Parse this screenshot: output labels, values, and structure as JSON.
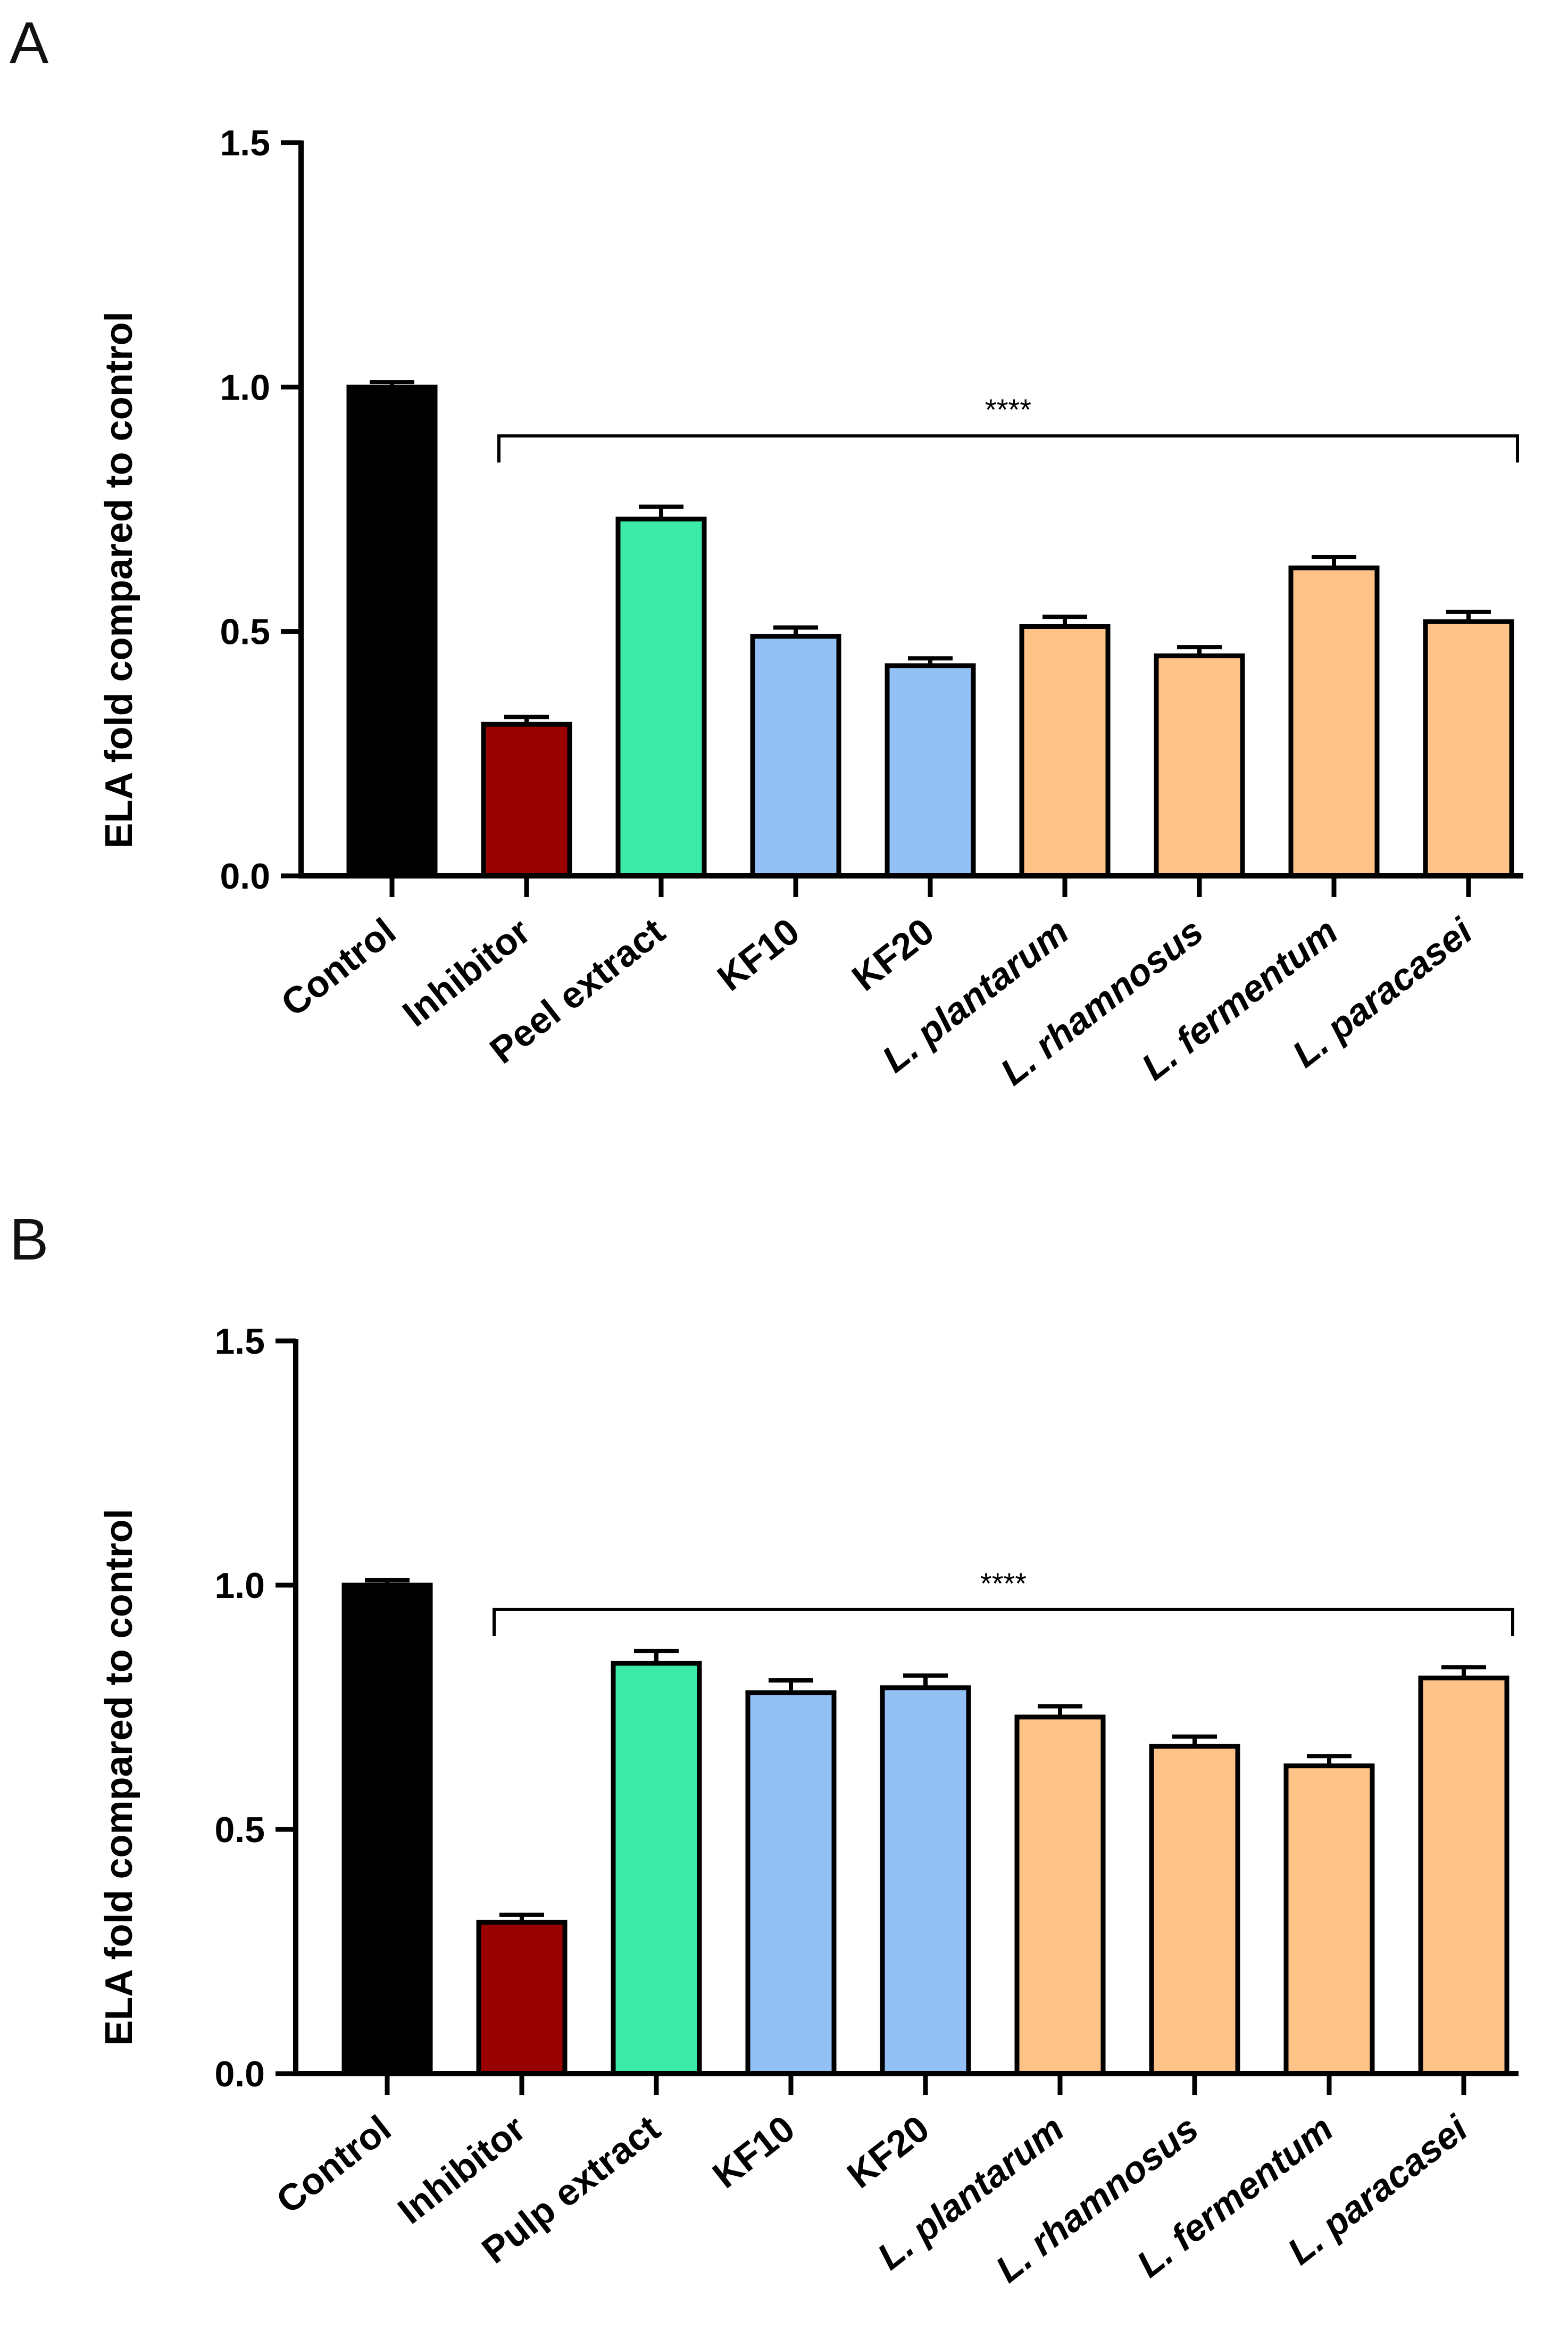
{
  "colors": {
    "control": "#000000",
    "inhibitor": "#990000",
    "extract": "#3DEBA9",
    "kf": "#93C0F5",
    "lactobacillus": "#FFC388",
    "axis": "#000000"
  },
  "chart_data": [
    {
      "panel": "A",
      "type": "bar",
      "ylabel": "ELA fold compared to control",
      "ylim": [
        0,
        1.5
      ],
      "yticks": [
        "0.0",
        "0.5",
        "1.0",
        "1.5"
      ],
      "categories": [
        "Control",
        "Inhibitor",
        "Peel extract",
        "KF10",
        "KF20",
        "L. plantarum",
        "L. rhamnosus",
        "L. fermentum",
        "L. paracasei"
      ],
      "italic_categories": [
        false,
        false,
        false,
        false,
        false,
        true,
        true,
        true,
        true
      ],
      "values": [
        1.0,
        0.31,
        0.73,
        0.49,
        0.43,
        0.51,
        0.45,
        0.63,
        0.52
      ],
      "errors": [
        0.01,
        0.015,
        0.025,
        0.018,
        0.015,
        0.02,
        0.018,
        0.022,
        0.02
      ],
      "color_keys": [
        "control",
        "inhibitor",
        "extract",
        "kf",
        "kf",
        "lactobacillus",
        "lactobacillus",
        "lactobacillus",
        "lactobacillus"
      ],
      "significance": {
        "label": "****",
        "from_index": 1,
        "to_index": 8,
        "y": 0.9
      }
    },
    {
      "panel": "B",
      "type": "bar",
      "ylabel": "ELA fold compared to control",
      "ylim": [
        0,
        1.5
      ],
      "yticks": [
        "0.0",
        "0.5",
        "1.0",
        "1.5"
      ],
      "categories": [
        "Control",
        "Inhibitor",
        "Pulp extract",
        "KF10",
        "KF20",
        "L. plantarum",
        "L. rhamnosus",
        "L. fermentum",
        "L. paracasei"
      ],
      "italic_categories": [
        false,
        false,
        false,
        false,
        false,
        true,
        true,
        true,
        true
      ],
      "values": [
        1.0,
        0.31,
        0.84,
        0.78,
        0.79,
        0.73,
        0.67,
        0.63,
        0.81
      ],
      "errors": [
        0.01,
        0.015,
        0.025,
        0.025,
        0.025,
        0.022,
        0.02,
        0.02,
        0.022
      ],
      "color_keys": [
        "control",
        "inhibitor",
        "extract",
        "kf",
        "kf",
        "lactobacillus",
        "lactobacillus",
        "lactobacillus",
        "lactobacillus"
      ],
      "significance": {
        "label": "****",
        "from_index": 1,
        "to_index": 8,
        "y": 0.95
      }
    }
  ]
}
